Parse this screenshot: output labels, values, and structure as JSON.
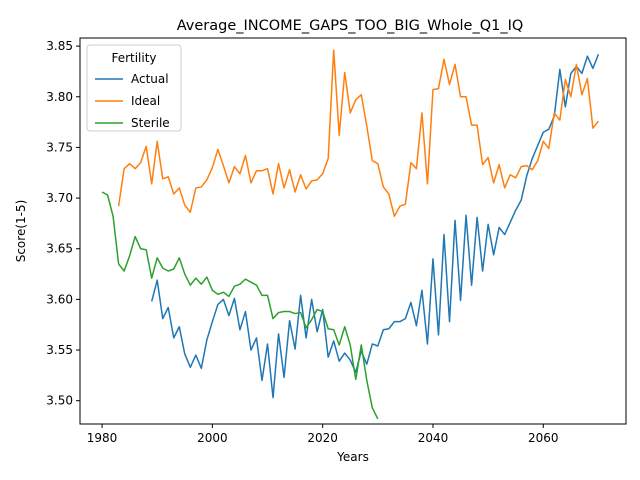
{
  "chart_data": {
    "type": "line",
    "title": "Average_INCOME_GAPS_TOO_BIG_Whole_Q1_IQ",
    "xlabel": "Years",
    "ylabel": "Score(1-5)",
    "xlim": [
      1976,
      2075
    ],
    "ylim": [
      3.477,
      3.858
    ],
    "xticks": [
      1980,
      2000,
      2020,
      2040,
      2060
    ],
    "yticks": [
      3.5,
      3.55,
      3.6,
      3.65,
      3.7,
      3.75,
      3.8,
      3.85
    ],
    "ytick_labels": [
      "3.50",
      "3.55",
      "3.60",
      "3.65",
      "3.70",
      "3.75",
      "3.80",
      "3.85"
    ],
    "grid": false,
    "legend": {
      "title": "Fertility",
      "placement": "upper-left"
    },
    "series": [
      {
        "name": "Actual",
        "color": "#1f77b4",
        "x": [
          1989,
          1990,
          1991,
          1992,
          1993,
          1994,
          1995,
          1996,
          1997,
          1998,
          1999,
          2000,
          2001,
          2002,
          2003,
          2004,
          2005,
          2006,
          2007,
          2008,
          2009,
          2010,
          2011,
          2012,
          2013,
          2014,
          2015,
          2016,
          2017,
          2018,
          2019,
          2020,
          2021,
          2022,
          2023,
          2024,
          2025,
          2026,
          2027,
          2028,
          2029,
          2030,
          2031,
          2032,
          2033,
          2034,
          2035,
          2036,
          2037,
          2038,
          2039,
          2040,
          2041,
          2042,
          2043,
          2044,
          2045,
          2046,
          2047,
          2048,
          2049,
          2050,
          2051,
          2052,
          2053,
          2054,
          2055,
          2056,
          2057,
          2058,
          2059,
          2060,
          2061,
          2062,
          2063,
          2064,
          2065,
          2066,
          2067,
          2068,
          2069,
          2070
        ],
        "values": [
          3.598,
          3.619,
          3.581,
          3.592,
          3.562,
          3.573,
          3.546,
          3.533,
          3.545,
          3.532,
          3.56,
          3.578,
          3.595,
          3.6,
          3.584,
          3.601,
          3.57,
          3.588,
          3.55,
          3.562,
          3.52,
          3.556,
          3.503,
          3.566,
          3.523,
          3.579,
          3.551,
          3.604,
          3.562,
          3.6,
          3.568,
          3.59,
          3.543,
          3.559,
          3.539,
          3.547,
          3.54,
          3.528,
          3.549,
          3.536,
          3.556,
          3.554,
          3.57,
          3.571,
          3.578,
          3.578,
          3.581,
          3.597,
          3.574,
          3.609,
          3.556,
          3.64,
          3.565,
          3.664,
          3.578,
          3.678,
          3.599,
          3.683,
          3.614,
          3.681,
          3.628,
          3.674,
          3.644,
          3.671,
          3.664,
          3.676,
          3.688,
          3.698,
          3.722,
          3.739,
          3.752,
          3.765,
          3.768,
          3.781,
          3.827,
          3.79,
          3.823,
          3.83,
          3.823,
          3.84,
          3.828,
          3.842
        ]
      },
      {
        "name": "Ideal",
        "color": "#ff7f0e",
        "x": [
          1983,
          1984,
          1985,
          1986,
          1987,
          1988,
          1989,
          1990,
          1991,
          1992,
          1993,
          1994,
          1995,
          1996,
          1997,
          1998,
          1999,
          2000,
          2001,
          2002,
          2003,
          2004,
          2005,
          2006,
          2007,
          2008,
          2009,
          2010,
          2011,
          2012,
          2013,
          2014,
          2015,
          2016,
          2017,
          2018,
          2019,
          2020,
          2021,
          2022,
          2023,
          2024,
          2025,
          2026,
          2027,
          2028,
          2029,
          2030,
          2031,
          2032,
          2033,
          2034,
          2035,
          2036,
          2037,
          2038,
          2039,
          2040,
          2041,
          2042,
          2043,
          2044,
          2045,
          2046,
          2047,
          2048,
          2049,
          2050,
          2051,
          2052,
          2053,
          2054,
          2055,
          2056,
          2057,
          2058,
          2059,
          2060,
          2061,
          2062,
          2063,
          2064,
          2065,
          2066,
          2067,
          2068,
          2069,
          2070
        ],
        "values": [
          3.692,
          3.729,
          3.734,
          3.729,
          3.735,
          3.751,
          3.714,
          3.756,
          3.719,
          3.721,
          3.704,
          3.71,
          3.693,
          3.686,
          3.71,
          3.711,
          3.718,
          3.73,
          3.748,
          3.732,
          3.715,
          3.731,
          3.724,
          3.742,
          3.715,
          3.727,
          3.727,
          3.729,
          3.704,
          3.734,
          3.71,
          3.728,
          3.706,
          3.723,
          3.709,
          3.717,
          3.718,
          3.724,
          3.739,
          3.846,
          3.762,
          3.824,
          3.784,
          3.797,
          3.802,
          3.771,
          3.737,
          3.734,
          3.711,
          3.704,
          3.682,
          3.692,
          3.694,
          3.735,
          3.729,
          3.784,
          3.714,
          3.807,
          3.808,
          3.837,
          3.812,
          3.832,
          3.8,
          3.8,
          3.772,
          3.772,
          3.733,
          3.74,
          3.715,
          3.733,
          3.71,
          3.723,
          3.72,
          3.731,
          3.732,
          3.728,
          3.737,
          3.756,
          3.749,
          3.784,
          3.777,
          3.817,
          3.8,
          3.832,
          3.802,
          3.818,
          3.769,
          3.776
        ]
      },
      {
        "name": "Sterile",
        "color": "#2ca02c",
        "x": [
          1980,
          1981,
          1982,
          1983,
          1984,
          1985,
          1986,
          1987,
          1988,
          1989,
          1990,
          1991,
          1992,
          1993,
          1994,
          1995,
          1996,
          1997,
          1998,
          1999,
          2000,
          2001,
          2002,
          2003,
          2004,
          2005,
          2006,
          2007,
          2008,
          2009,
          2010,
          2011,
          2012,
          2013,
          2014,
          2015,
          2016,
          2017,
          2018,
          2019,
          2020,
          2021,
          2022,
          2023,
          2024,
          2025,
          2026,
          2027,
          2028,
          2029,
          2030
        ],
        "values": [
          3.706,
          3.703,
          3.682,
          3.635,
          3.628,
          3.643,
          3.662,
          3.65,
          3.649,
          3.621,
          3.641,
          3.631,
          3.628,
          3.63,
          3.641,
          3.625,
          3.614,
          3.621,
          3.615,
          3.622,
          3.609,
          3.605,
          3.607,
          3.603,
          3.613,
          3.615,
          3.62,
          3.617,
          3.614,
          3.604,
          3.604,
          3.581,
          3.587,
          3.588,
          3.588,
          3.586,
          3.587,
          3.572,
          3.58,
          3.59,
          3.588,
          3.571,
          3.57,
          3.555,
          3.573,
          3.555,
          3.521,
          3.555,
          3.52,
          3.493,
          3.482
        ]
      }
    ]
  }
}
